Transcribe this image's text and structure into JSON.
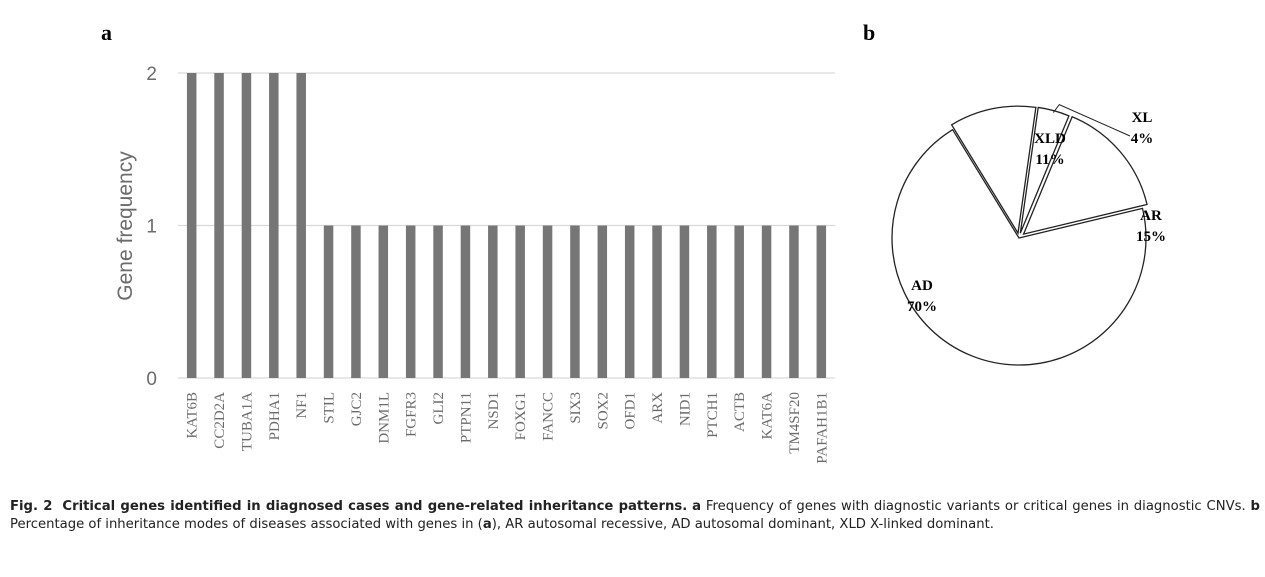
{
  "chart_data": [
    {
      "type": "bar",
      "panel": "a",
      "ylabel": "Gene frequency",
      "ylim": [
        0,
        2
      ],
      "yticks": [
        0,
        1,
        2
      ],
      "grid": true,
      "categories": [
        "KAT6B",
        "CC2D2A",
        "TUBA1A",
        "PDHA1",
        "NF1",
        "STIL",
        "GJC2",
        "DNM1L",
        "FGFR3",
        "GLI2",
        "PTPN11",
        "NSD1",
        "FOXG1",
        "FANCC",
        "SIX3",
        "SOX2",
        "OFD1",
        "ARX",
        "NID1",
        "PTCH1",
        "ACTB",
        "KAT6A",
        "TM4SF20",
        "PAFAH1B1"
      ],
      "values": [
        2,
        2,
        2,
        2,
        2,
        1,
        1,
        1,
        1,
        1,
        1,
        1,
        1,
        1,
        1,
        1,
        1,
        1,
        1,
        1,
        1,
        1,
        1,
        1
      ],
      "bar_color": "#767676"
    },
    {
      "type": "pie",
      "panel": "b",
      "slices": [
        {
          "label": "AD",
          "value": 70,
          "text": "70%"
        },
        {
          "label": "XLD",
          "value": 11,
          "text": "11%"
        },
        {
          "label": "XL",
          "value": 4,
          "text": "4%"
        },
        {
          "label": "AR",
          "value": 15,
          "text": "15%"
        }
      ]
    }
  ],
  "caption": {
    "fig_no": "Fig. 2",
    "title": "Critical genes identified in diagnosed cases and gene-related inheritance patterns.",
    "part_a_letter": "a",
    "part_a_text": " Frequency of genes with diagnostic variants or critical genes in diagnostic CNVs. ",
    "part_b_letter": "b",
    "part_b_text_1": " Percentage of inheritance modes of diseases associated with genes in (",
    "ref_letter": "a",
    "part_b_text_2": "), AR autosomal recessive, AD autosomal dominant, XLD X-linked dominant."
  }
}
